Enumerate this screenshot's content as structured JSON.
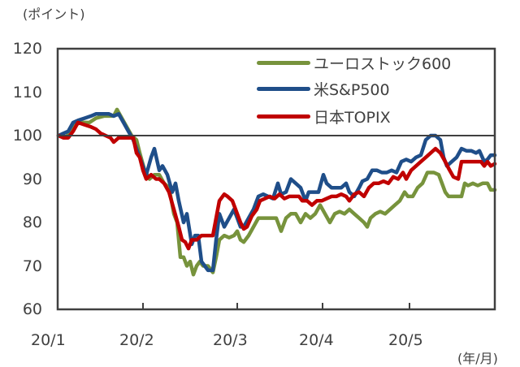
{
  "chart_data": {
    "type": "line",
    "title": "",
    "ylabel": "(ポイント)",
    "xlabel": "(年/月)",
    "ylim": [
      60,
      120
    ],
    "yticks": [
      120,
      110,
      100,
      90,
      80,
      70,
      60
    ],
    "categories": [
      "20/1",
      "20/2",
      "20/3",
      "20/4",
      "20/5"
    ],
    "reference_line": 100,
    "grid": false,
    "legend_position": "upper right",
    "series": [
      {
        "name": "ユーロストック600",
        "color": "#77933c",
        "points": [
          [
            72,
            100
          ],
          [
            80,
            99.5
          ],
          [
            86,
            100.5
          ],
          [
            92,
            102.5
          ],
          [
            100,
            103
          ],
          [
            110,
            103
          ],
          [
            118,
            104
          ],
          [
            128,
            104.5
          ],
          [
            140,
            104.5
          ],
          [
            144,
            106
          ],
          [
            150,
            104
          ],
          [
            156,
            102
          ],
          [
            162,
            100
          ],
          [
            168,
            99
          ],
          [
            172,
            96
          ],
          [
            178,
            92
          ],
          [
            184,
            90
          ],
          [
            190,
            91
          ],
          [
            196,
            91
          ],
          [
            202,
            89
          ],
          [
            208,
            88
          ],
          [
            214,
            82
          ],
          [
            218,
            80
          ],
          [
            222,
            72
          ],
          [
            226,
            72
          ],
          [
            230,
            70
          ],
          [
            234,
            71
          ],
          [
            238,
            68
          ],
          [
            242,
            70
          ],
          [
            246,
            71
          ],
          [
            250,
            70
          ],
          [
            256,
            70
          ],
          [
            262,
            68.5
          ],
          [
            266,
            72
          ],
          [
            270,
            76
          ],
          [
            276,
            77
          ],
          [
            282,
            76.5
          ],
          [
            288,
            77
          ],
          [
            292,
            78
          ],
          [
            296,
            76
          ],
          [
            300,
            75.5
          ],
          [
            306,
            77
          ],
          [
            312,
            79
          ],
          [
            318,
            81
          ],
          [
            326,
            81
          ],
          [
            334,
            81
          ],
          [
            340,
            81
          ],
          [
            346,
            78
          ],
          [
            352,
            81
          ],
          [
            358,
            82
          ],
          [
            364,
            82
          ],
          [
            370,
            80
          ],
          [
            376,
            82
          ],
          [
            382,
            81
          ],
          [
            388,
            82
          ],
          [
            394,
            84
          ],
          [
            400,
            82
          ],
          [
            406,
            80
          ],
          [
            412,
            82
          ],
          [
            418,
            82.5
          ],
          [
            424,
            82
          ],
          [
            430,
            83
          ],
          [
            436,
            82
          ],
          [
            442,
            81
          ],
          [
            448,
            80
          ],
          [
            452,
            79
          ],
          [
            456,
            81
          ],
          [
            462,
            82
          ],
          [
            468,
            82.5
          ],
          [
            474,
            82
          ],
          [
            480,
            83
          ],
          [
            486,
            84
          ],
          [
            492,
            85
          ],
          [
            498,
            87
          ],
          [
            502,
            86
          ],
          [
            508,
            86
          ],
          [
            514,
            88
          ],
          [
            520,
            89
          ],
          [
            526,
            91.5
          ],
          [
            534,
            91.5
          ],
          [
            540,
            91
          ],
          [
            544,
            89
          ],
          [
            548,
            87
          ],
          [
            552,
            86
          ],
          [
            558,
            86
          ],
          [
            564,
            86
          ],
          [
            568,
            86
          ],
          [
            572,
            89
          ],
          [
            576,
            88.5
          ],
          [
            582,
            89
          ],
          [
            588,
            88.5
          ],
          [
            594,
            89
          ],
          [
            600,
            89
          ],
          [
            604,
            87.5
          ],
          [
            609,
            87.5
          ]
        ]
      },
      {
        "name": "米S&P500",
        "color": "#1f4e89",
        "points": [
          [
            72,
            100
          ],
          [
            78,
            100.5
          ],
          [
            84,
            101
          ],
          [
            90,
            103
          ],
          [
            96,
            103.5
          ],
          [
            104,
            104
          ],
          [
            112,
            104.5
          ],
          [
            118,
            105
          ],
          [
            126,
            105
          ],
          [
            134,
            105
          ],
          [
            140,
            104.5
          ],
          [
            146,
            105
          ],
          [
            152,
            103
          ],
          [
            158,
            101
          ],
          [
            164,
            99
          ],
          [
            170,
            96
          ],
          [
            176,
            93
          ],
          [
            180,
            91
          ],
          [
            186,
            95
          ],
          [
            190,
            97
          ],
          [
            196,
            92
          ],
          [
            200,
            93
          ],
          [
            206,
            91
          ],
          [
            212,
            87
          ],
          [
            216,
            89
          ],
          [
            220,
            85
          ],
          [
            226,
            80
          ],
          [
            230,
            82
          ],
          [
            236,
            75
          ],
          [
            240,
            77
          ],
          [
            244,
            77
          ],
          [
            248,
            71
          ],
          [
            252,
            70
          ],
          [
            256,
            69
          ],
          [
            262,
            69
          ],
          [
            266,
            76
          ],
          [
            270,
            82
          ],
          [
            276,
            79
          ],
          [
            282,
            81
          ],
          [
            288,
            83
          ],
          [
            292,
            81
          ],
          [
            296,
            79
          ],
          [
            300,
            79
          ],
          [
            306,
            81
          ],
          [
            312,
            83
          ],
          [
            318,
            86
          ],
          [
            324,
            86.5
          ],
          [
            330,
            86
          ],
          [
            336,
            85.5
          ],
          [
            342,
            89
          ],
          [
            346,
            86.5
          ],
          [
            352,
            87
          ],
          [
            358,
            90
          ],
          [
            364,
            89
          ],
          [
            370,
            88
          ],
          [
            376,
            85
          ],
          [
            380,
            87
          ],
          [
            386,
            87
          ],
          [
            392,
            87
          ],
          [
            398,
            91
          ],
          [
            402,
            89
          ],
          [
            408,
            88
          ],
          [
            414,
            88
          ],
          [
            420,
            88
          ],
          [
            426,
            89
          ],
          [
            430,
            87
          ],
          [
            436,
            86
          ],
          [
            442,
            88
          ],
          [
            446,
            89.5
          ],
          [
            452,
            90
          ],
          [
            458,
            92
          ],
          [
            464,
            92
          ],
          [
            470,
            91.5
          ],
          [
            476,
            91.5
          ],
          [
            482,
            92
          ],
          [
            488,
            91.5
          ],
          [
            494,
            94
          ],
          [
            500,
            94.5
          ],
          [
            506,
            94
          ],
          [
            512,
            95
          ],
          [
            518,
            95.5
          ],
          [
            524,
            99
          ],
          [
            530,
            100
          ],
          [
            536,
            100
          ],
          [
            542,
            99
          ],
          [
            546,
            95
          ],
          [
            550,
            93
          ],
          [
            556,
            94
          ],
          [
            562,
            95
          ],
          [
            568,
            97
          ],
          [
            574,
            96.5
          ],
          [
            580,
            96.5
          ],
          [
            586,
            96
          ],
          [
            590,
            96.5
          ],
          [
            596,
            94
          ],
          [
            600,
            94.5
          ],
          [
            604,
            95.5
          ],
          [
            609,
            95.5
          ]
        ]
      },
      {
        "name": "日本TOPIX",
        "color": "#c00000",
        "points": [
          [
            72,
            100
          ],
          [
            78,
            99.5
          ],
          [
            84,
            99.5
          ],
          [
            90,
            101
          ],
          [
            96,
            103
          ],
          [
            104,
            102.5
          ],
          [
            112,
            102
          ],
          [
            118,
            101.5
          ],
          [
            124,
            100.5
          ],
          [
            130,
            100
          ],
          [
            136,
            99.5
          ],
          [
            140,
            98.5
          ],
          [
            146,
            99.5
          ],
          [
            152,
            99.5
          ],
          [
            158,
            99.5
          ],
          [
            164,
            99.5
          ],
          [
            168,
            96
          ],
          [
            172,
            95
          ],
          [
            176,
            92
          ],
          [
            180,
            90
          ],
          [
            186,
            91
          ],
          [
            192,
            90
          ],
          [
            196,
            90
          ],
          [
            202,
            89
          ],
          [
            208,
            87
          ],
          [
            214,
            83
          ],
          [
            220,
            79
          ],
          [
            224,
            76
          ],
          [
            228,
            75.5
          ],
          [
            232,
            74
          ],
          [
            236,
            76
          ],
          [
            242,
            76
          ],
          [
            248,
            77
          ],
          [
            256,
            77
          ],
          [
            262,
            77
          ],
          [
            266,
            81
          ],
          [
            270,
            85
          ],
          [
            276,
            86.5
          ],
          [
            280,
            86
          ],
          [
            286,
            85
          ],
          [
            292,
            82
          ],
          [
            296,
            80
          ],
          [
            300,
            78.5
          ],
          [
            304,
            79
          ],
          [
            310,
            81.5
          ],
          [
            316,
            83
          ],
          [
            320,
            85
          ],
          [
            326,
            85.5
          ],
          [
            332,
            86
          ],
          [
            338,
            85.5
          ],
          [
            344,
            86.5
          ],
          [
            350,
            85.5
          ],
          [
            356,
            86
          ],
          [
            362,
            86
          ],
          [
            368,
            86
          ],
          [
            372,
            85
          ],
          [
            378,
            85
          ],
          [
            384,
            84
          ],
          [
            390,
            85
          ],
          [
            396,
            85
          ],
          [
            402,
            85.5
          ],
          [
            408,
            86
          ],
          [
            414,
            86
          ],
          [
            420,
            86.5
          ],
          [
            426,
            86
          ],
          [
            430,
            85
          ],
          [
            436,
            86.5
          ],
          [
            442,
            87
          ],
          [
            448,
            86
          ],
          [
            454,
            88
          ],
          [
            460,
            89
          ],
          [
            466,
            89
          ],
          [
            472,
            89.5
          ],
          [
            478,
            89
          ],
          [
            484,
            90.5
          ],
          [
            490,
            90
          ],
          [
            496,
            91.5
          ],
          [
            500,
            90
          ],
          [
            506,
            92
          ],
          [
            512,
            93
          ],
          [
            518,
            94
          ],
          [
            524,
            95
          ],
          [
            530,
            96
          ],
          [
            536,
            97
          ],
          [
            542,
            96
          ],
          [
            548,
            94
          ],
          [
            552,
            92.5
          ],
          [
            558,
            90.5
          ],
          [
            564,
            90
          ],
          [
            568,
            94
          ],
          [
            574,
            94
          ],
          [
            580,
            94
          ],
          [
            586,
            94
          ],
          [
            592,
            94
          ],
          [
            596,
            93
          ],
          [
            600,
            94
          ],
          [
            604,
            93
          ],
          [
            609,
            93.5
          ]
        ]
      }
    ]
  },
  "labels": {
    "y_unit": "(ポイント)",
    "x_unit": "(年/月)",
    "y_ticks": [
      "120",
      "110",
      "100",
      "90",
      "80",
      "70",
      "60"
    ],
    "x_ticks": [
      "20/1",
      "20/2",
      "20/3",
      "20/4",
      "20/5"
    ],
    "legend": [
      "ユーロストック600",
      "米S&P500",
      "日本TOPIX"
    ]
  },
  "colors": {
    "euro": "#77933c",
    "sp500": "#1f4e89",
    "topix": "#c00000",
    "axis": "#404040"
  }
}
